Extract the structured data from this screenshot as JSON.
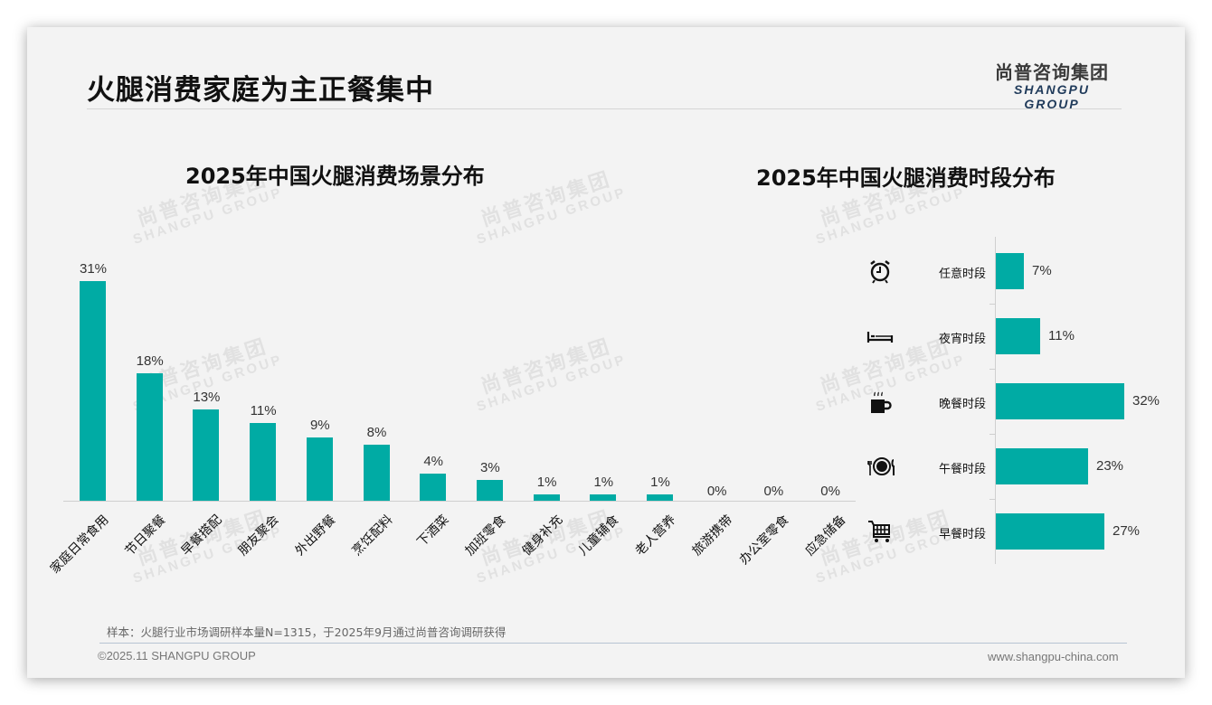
{
  "page": {
    "title": "火腿消费家庭为主正餐集中",
    "logo_cn": "尚普咨询集团",
    "logo_en": "SHANGPU GROUP",
    "watermark_cn": "尚普咨询集团",
    "watermark_en": "SHANGPU GROUP",
    "note": "样本：火腿行业市场调研样本量N=1315，于2025年9月通过尚普咨询调研获得",
    "footer_left": "©2025.11 SHANGPU GROUP",
    "footer_right": "www.shangpu-china.com",
    "accent_color": "#00aba4"
  },
  "chart_data": [
    {
      "type": "bar",
      "title": "2025年中国火腿消费场景分布",
      "xlabel": "",
      "ylabel": "",
      "categories": [
        "家庭日常食用",
        "节日聚餐",
        "早餐搭配",
        "朋友聚会",
        "外出野餐",
        "烹饪配料",
        "下酒菜",
        "加班零食",
        "健身补充",
        "儿童辅食",
        "老人营养",
        "旅游携带",
        "办公室零食",
        "应急储备"
      ],
      "values": [
        31,
        18,
        13,
        11,
        9,
        8,
        4,
        3,
        1,
        1,
        1,
        0,
        0,
        0
      ],
      "labels": [
        "31%",
        "18%",
        "13%",
        "11%",
        "9%",
        "8%",
        "4%",
        "3%",
        "1%",
        "1%",
        "1%",
        "0%",
        "0%",
        "0%"
      ],
      "unit": "%",
      "grid": false,
      "color": "#00aba4"
    },
    {
      "type": "bar",
      "orientation": "horizontal",
      "title": "2025年中国火腿消费时段分布",
      "categories": [
        "任意时段",
        "夜宵时段",
        "晚餐时段",
        "午餐时段",
        "早餐时段"
      ],
      "values": [
        7,
        11,
        32,
        23,
        27
      ],
      "labels": [
        "7%",
        "11%",
        "32%",
        "23%",
        "27%"
      ],
      "icons": [
        "alarm-clock-icon",
        "bed-icon",
        "coffee-cup-icon",
        "plate-cutlery-icon",
        "shopping-cart-icon"
      ],
      "unit": "%",
      "grid": false,
      "color": "#00aba4"
    }
  ]
}
